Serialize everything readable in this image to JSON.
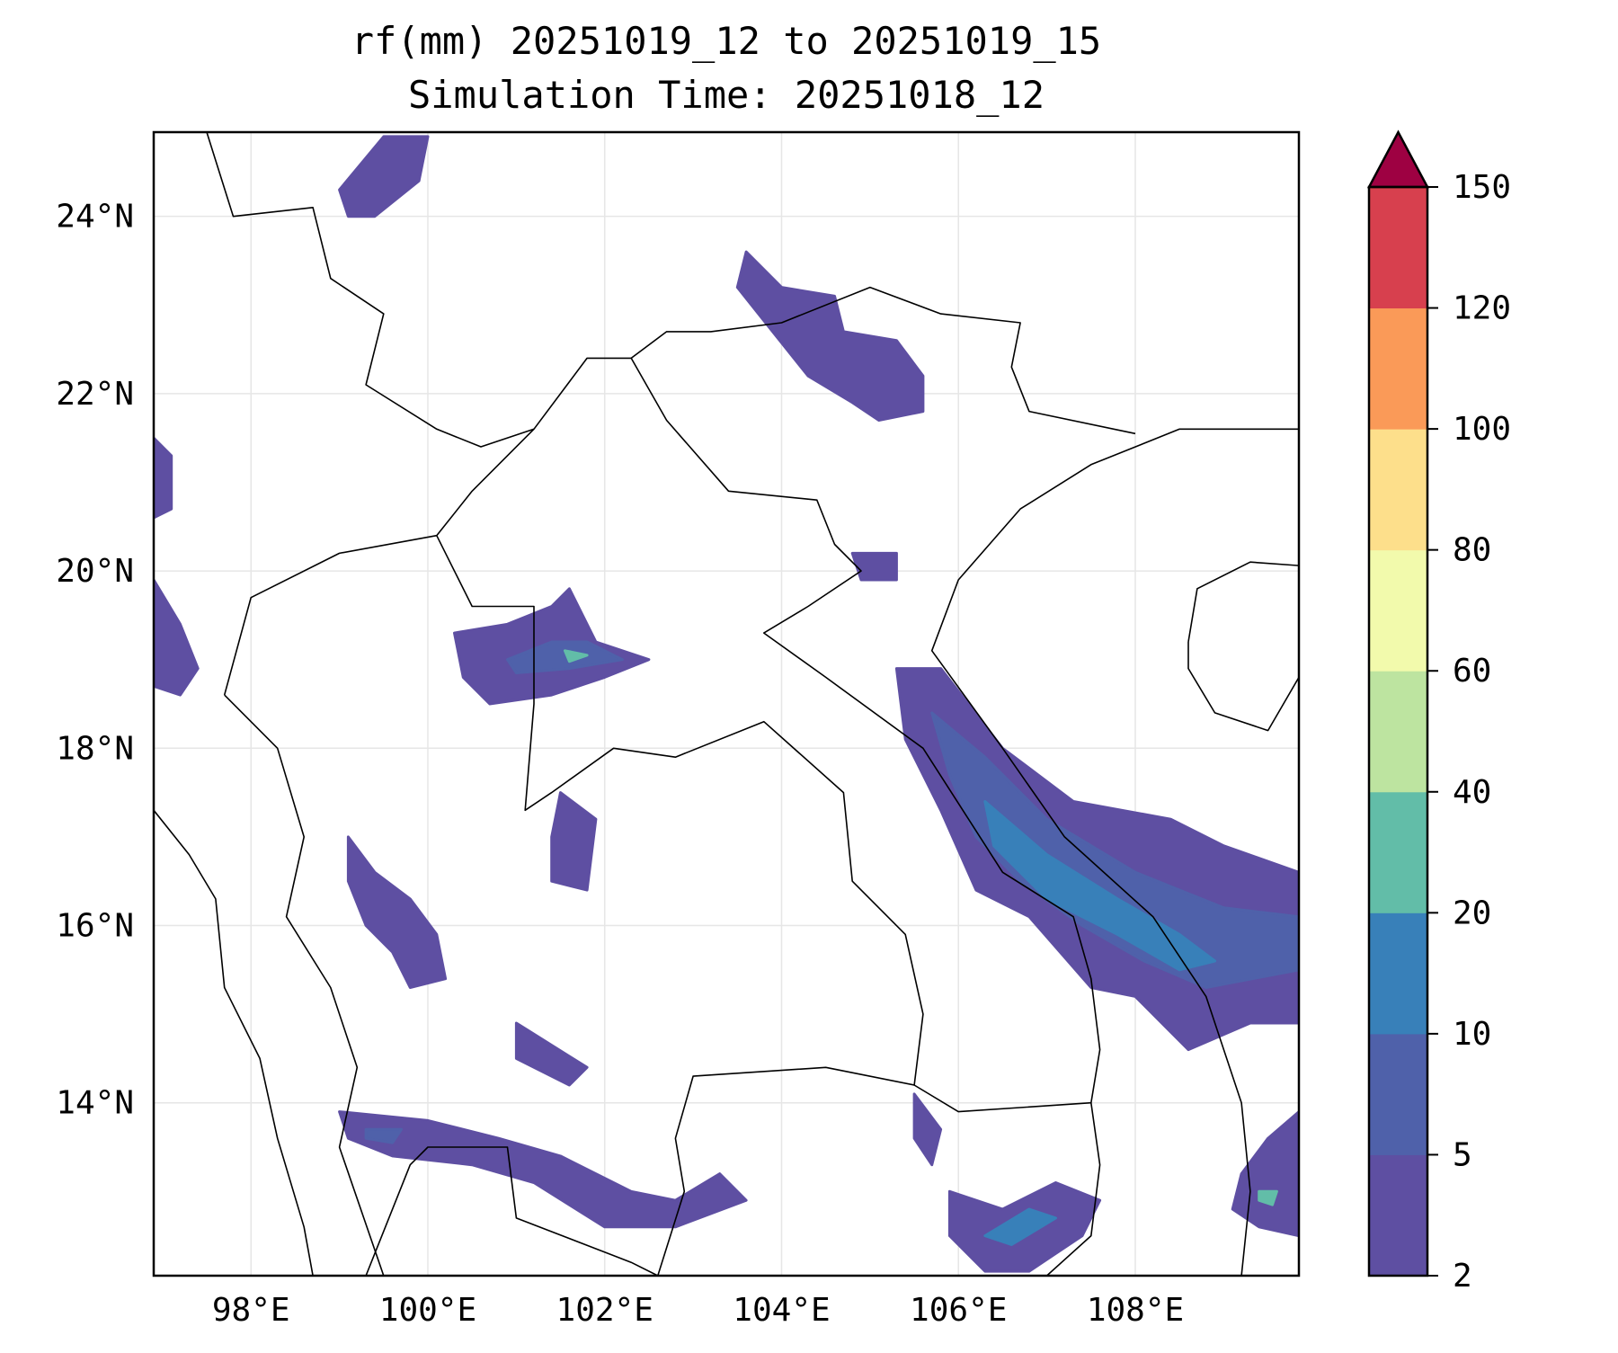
{
  "chart_data": {
    "type": "heatmap",
    "title_line1": "rf(mm) 20251019_12 to 20251019_15",
    "title_line2": "Simulation Time: 20251018_12",
    "xlim": [
      96.9,
      109.85
    ],
    "ylim": [
      12.05,
      24.95
    ],
    "xticks": [
      98,
      100,
      102,
      104,
      106,
      108
    ],
    "xtick_labels": [
      "98°E",
      "100°E",
      "102°E",
      "104°E",
      "106°E",
      "108°E"
    ],
    "yticks": [
      24,
      22,
      20,
      18,
      16,
      14
    ],
    "ytick_labels": [
      "24°N",
      "22°N",
      "20°N",
      "18°N",
      "16°N",
      "14°N"
    ],
    "grid": true,
    "colorbar": {
      "levels": [
        2,
        5,
        10,
        20,
        40,
        60,
        80,
        100,
        120,
        150
      ],
      "tick_labels": [
        "2",
        "5",
        "10",
        "20",
        "40",
        "60",
        "80",
        "100",
        "120",
        "150"
      ],
      "colors": [
        "#5e4fa2",
        "#4f61aa",
        "#3880b9",
        "#62bda8",
        "#bde4a0",
        "#f2faac",
        "#fddf8b",
        "#fa9a58",
        "#d7404e",
        "#9e0142"
      ],
      "extend": "max"
    },
    "rain_regions": [
      {
        "level": 0,
        "polygon": [
          [
            105.3,
            18.9
          ],
          [
            105.8,
            18.9
          ],
          [
            106.5,
            18.0
          ],
          [
            107.3,
            17.4
          ],
          [
            108.4,
            17.2
          ],
          [
            109.0,
            16.9
          ],
          [
            109.85,
            16.6
          ],
          [
            109.85,
            14.9
          ],
          [
            109.3,
            14.9
          ],
          [
            108.6,
            14.6
          ],
          [
            108.0,
            15.2
          ],
          [
            107.5,
            15.3
          ],
          [
            106.8,
            16.1
          ],
          [
            106.2,
            16.4
          ],
          [
            105.8,
            17.3
          ],
          [
            105.4,
            18.1
          ]
        ]
      },
      {
        "level": 1,
        "polygon": [
          [
            105.7,
            18.4
          ],
          [
            106.3,
            17.9
          ],
          [
            107.0,
            17.2
          ],
          [
            108.0,
            16.6
          ],
          [
            109.0,
            16.2
          ],
          [
            109.85,
            16.1
          ],
          [
            109.85,
            15.5
          ],
          [
            108.8,
            15.3
          ],
          [
            108.1,
            15.6
          ],
          [
            107.4,
            16.0
          ],
          [
            106.7,
            16.5
          ],
          [
            106.2,
            17.0
          ],
          [
            105.9,
            17.7
          ]
        ]
      },
      {
        "level": 2,
        "polygon": [
          [
            106.3,
            17.4
          ],
          [
            107.0,
            16.8
          ],
          [
            107.8,
            16.3
          ],
          [
            108.5,
            15.9
          ],
          [
            108.9,
            15.6
          ],
          [
            108.5,
            15.5
          ],
          [
            107.8,
            15.9
          ],
          [
            107.0,
            16.3
          ],
          [
            106.4,
            16.9
          ]
        ]
      },
      {
        "level": 0,
        "polygon": [
          [
            100.3,
            19.3
          ],
          [
            100.9,
            19.4
          ],
          [
            101.4,
            19.6
          ],
          [
            101.6,
            19.8
          ],
          [
            101.9,
            19.2
          ],
          [
            102.5,
            19.0
          ],
          [
            102.0,
            18.8
          ],
          [
            101.4,
            18.6
          ],
          [
            100.7,
            18.5
          ],
          [
            100.4,
            18.8
          ]
        ]
      },
      {
        "level": 1,
        "polygon": [
          [
            100.9,
            19.0
          ],
          [
            101.4,
            19.2
          ],
          [
            101.8,
            19.2
          ],
          [
            102.2,
            19.0
          ],
          [
            101.6,
            18.9
          ],
          [
            101.0,
            18.85
          ]
        ]
      },
      {
        "level": 3,
        "polygon": [
          [
            101.55,
            19.1
          ],
          [
            101.8,
            19.05
          ],
          [
            101.6,
            18.98
          ]
        ]
      },
      {
        "level": 0,
        "polygon": [
          [
            103.6,
            23.6
          ],
          [
            104.0,
            23.2
          ],
          [
            104.6,
            23.1
          ],
          [
            104.7,
            22.7
          ],
          [
            105.3,
            22.6
          ],
          [
            105.6,
            22.2
          ],
          [
            105.6,
            21.8
          ],
          [
            105.1,
            21.7
          ],
          [
            104.8,
            21.9
          ],
          [
            104.3,
            22.2
          ],
          [
            103.9,
            22.7
          ],
          [
            103.5,
            23.2
          ]
        ]
      },
      {
        "level": 0,
        "polygon": [
          [
            99.0,
            13.9
          ],
          [
            100.0,
            13.8
          ],
          [
            100.8,
            13.6
          ],
          [
            101.5,
            13.4
          ],
          [
            102.3,
            13.0
          ],
          [
            102.8,
            12.9
          ],
          [
            103.3,
            13.2
          ],
          [
            103.6,
            12.9
          ],
          [
            102.8,
            12.6
          ],
          [
            102.0,
            12.6
          ],
          [
            101.2,
            13.1
          ],
          [
            100.5,
            13.3
          ],
          [
            99.6,
            13.4
          ],
          [
            99.1,
            13.6
          ]
        ]
      },
      {
        "level": 1,
        "polygon": [
          [
            99.3,
            13.7
          ],
          [
            99.7,
            13.7
          ],
          [
            99.6,
            13.55
          ],
          [
            99.3,
            13.6
          ]
        ]
      },
      {
        "level": 0,
        "polygon": [
          [
            99.1,
            17.0
          ],
          [
            99.4,
            16.6
          ],
          [
            99.8,
            16.3
          ],
          [
            100.1,
            15.9
          ],
          [
            100.2,
            15.4
          ],
          [
            99.8,
            15.3
          ],
          [
            99.6,
            15.7
          ],
          [
            99.3,
            16.0
          ],
          [
            99.1,
            16.5
          ]
        ]
      },
      {
        "level": 0,
        "polygon": [
          [
            105.9,
            13.0
          ],
          [
            106.5,
            12.8
          ],
          [
            107.1,
            13.1
          ],
          [
            107.6,
            12.9
          ],
          [
            107.4,
            12.5
          ],
          [
            106.8,
            12.1
          ],
          [
            106.3,
            12.1
          ],
          [
            105.9,
            12.5
          ]
        ]
      },
      {
        "level": 2,
        "polygon": [
          [
            106.3,
            12.5
          ],
          [
            106.8,
            12.8
          ],
          [
            107.1,
            12.7
          ],
          [
            106.6,
            12.4
          ]
        ]
      },
      {
        "level": 0,
        "polygon": [
          [
            96.9,
            21.5
          ],
          [
            97.1,
            21.3
          ],
          [
            97.1,
            20.7
          ],
          [
            96.9,
            20.6
          ]
        ]
      },
      {
        "level": 0,
        "polygon": [
          [
            96.9,
            19.9
          ],
          [
            97.2,
            19.4
          ],
          [
            97.4,
            18.9
          ],
          [
            97.2,
            18.6
          ],
          [
            96.9,
            18.7
          ]
        ]
      },
      {
        "level": 0,
        "polygon": [
          [
            99.0,
            24.3
          ],
          [
            99.5,
            24.9
          ],
          [
            100.0,
            24.9
          ],
          [
            99.9,
            24.4
          ],
          [
            99.4,
            24.0
          ],
          [
            99.1,
            24.0
          ]
        ]
      },
      {
        "level": 0,
        "polygon": [
          [
            109.2,
            13.2
          ],
          [
            109.5,
            13.6
          ],
          [
            109.85,
            13.9
          ],
          [
            109.85,
            12.5
          ],
          [
            109.4,
            12.6
          ],
          [
            109.1,
            12.8
          ]
        ]
      },
      {
        "level": 3,
        "polygon": [
          [
            109.4,
            13.0
          ],
          [
            109.6,
            13.0
          ],
          [
            109.55,
            12.85
          ],
          [
            109.4,
            12.9
          ]
        ]
      },
      {
        "level": 0,
        "polygon": [
          [
            104.8,
            20.2
          ],
          [
            105.3,
            20.2
          ],
          [
            105.3,
            19.9
          ],
          [
            104.9,
            19.9
          ]
        ]
      },
      {
        "level": 0,
        "polygon": [
          [
            101.5,
            17.5
          ],
          [
            101.9,
            17.2
          ],
          [
            101.8,
            16.4
          ],
          [
            101.4,
            16.5
          ],
          [
            101.4,
            17.0
          ]
        ]
      },
      {
        "level": 0,
        "polygon": [
          [
            101.0,
            14.9
          ],
          [
            101.8,
            14.4
          ],
          [
            101.6,
            14.2
          ],
          [
            101.0,
            14.5
          ]
        ]
      },
      {
        "level": 0,
        "polygon": [
          [
            105.5,
            14.1
          ],
          [
            105.8,
            13.7
          ],
          [
            105.7,
            13.3
          ],
          [
            105.5,
            13.6
          ]
        ]
      }
    ]
  }
}
